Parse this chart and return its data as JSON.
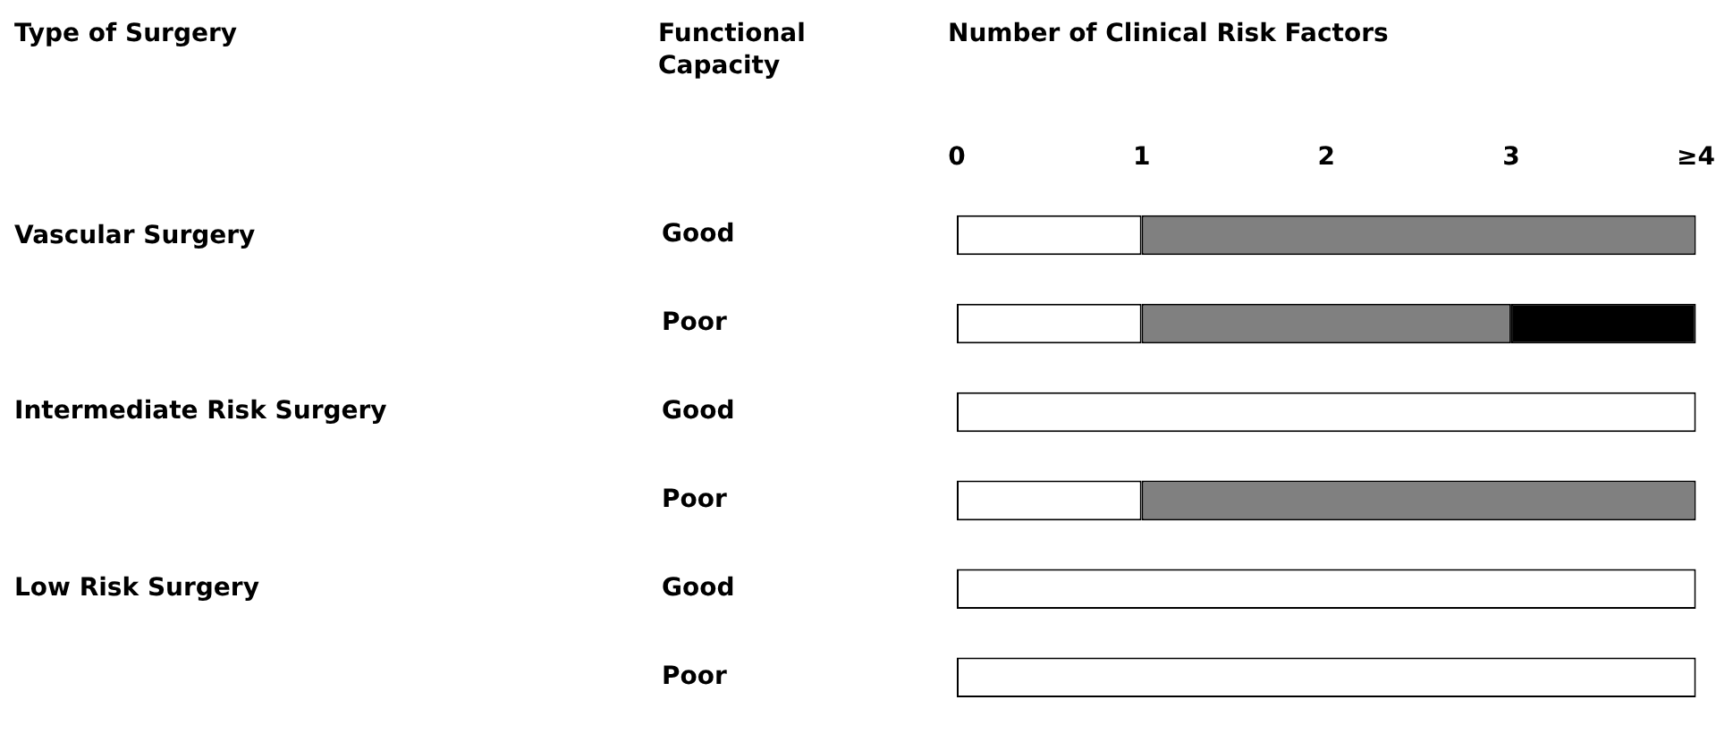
{
  "chart_data": {
    "type": "bar",
    "orientation": "horizontal",
    "stacked": true,
    "title": "Type of Surgery",
    "ylabel": "Functional Capacity",
    "xlabel": "Number of Clinical Risk Factors",
    "categories": [
      "Good",
      "Poor",
      "Good",
      "Poor",
      "Good",
      "Poor"
    ],
    "annotations": [
      "Vascular Surgery",
      "Intermediate Risk Surgery",
      "Low Risk Surgery"
    ],
    "series": [
      {
        "color": "#ffffff",
        "axis": "x2",
        "values": [
          1,
          1,
          4,
          1,
          4,
          4
        ]
      },
      {
        "color": "#808080",
        "axis": "x2",
        "values": [
          3,
          2,
          0,
          3,
          0,
          0
        ]
      },
      {
        "color": "#000000",
        "axis": "x2",
        "values": [
          0,
          1,
          0,
          0,
          0,
          0
        ]
      }
    ],
    "x2lim": [
      0,
      4
    ],
    "x2ticks": [
      0,
      1,
      2,
      3,
      {
        "value": 4,
        "label": "≥4"
      }
    ],
    "grid": false,
    "legend": false
  }
}
